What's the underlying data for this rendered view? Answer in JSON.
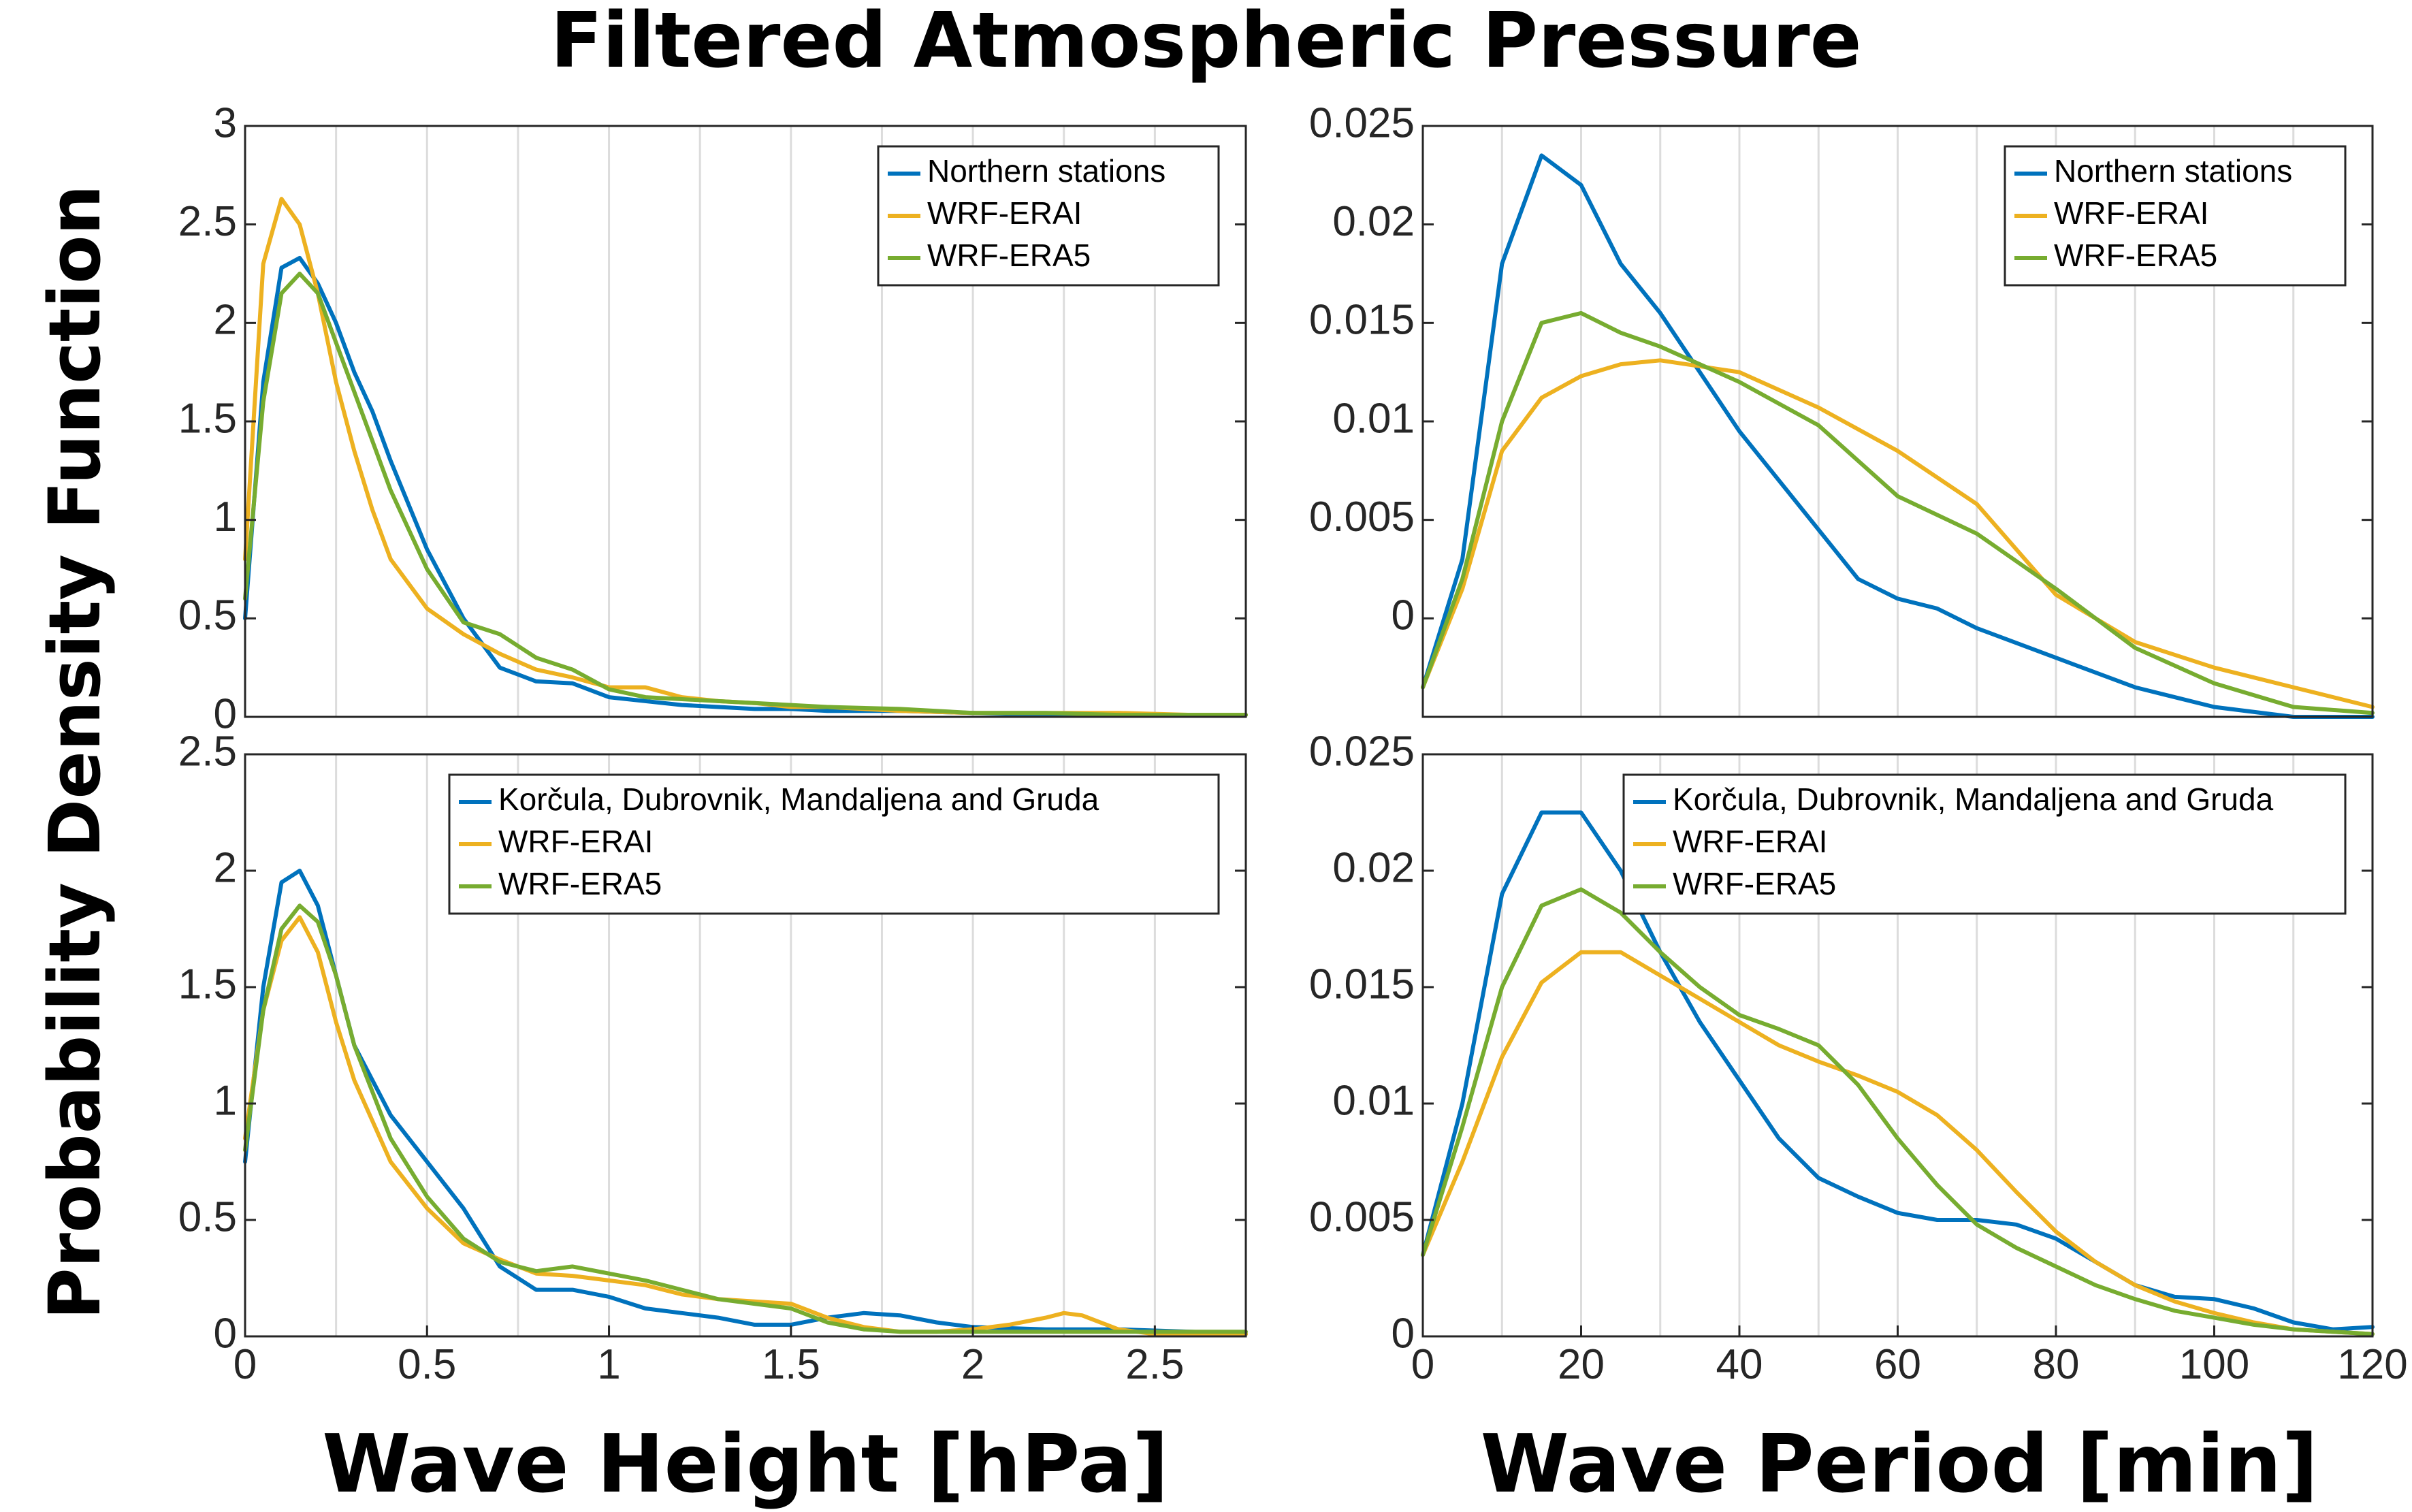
{
  "figure": {
    "title": "Filtered Atmospheric Pressure",
    "ylabel": "Probability Density Function",
    "xlabel_left": "Wave Height [hPa]",
    "xlabel_right": "Wave Period [min]"
  },
  "colors": {
    "blue": "#0072BD",
    "orange": "#EDB120",
    "green": "#77AC30"
  },
  "chart_data": [
    {
      "type": "line",
      "panel": "top-left",
      "xlim": [
        0,
        2.75
      ],
      "ylim": [
        0,
        3
      ],
      "yticks": [
        "0",
        "0.5",
        "1",
        "1.5",
        "2",
        "2.5",
        "3"
      ],
      "xticks": [],
      "grid": "vertical",
      "legend_position": "top-right",
      "series": [
        {
          "name": "Northern stations",
          "color": "#0072BD",
          "x": [
            0,
            0.05,
            0.1,
            0.15,
            0.2,
            0.25,
            0.3,
            0.35,
            0.4,
            0.5,
            0.6,
            0.7,
            0.8,
            0.9,
            1.0,
            1.1,
            1.2,
            1.3,
            1.4,
            1.5,
            1.6,
            1.8,
            2.0,
            2.2,
            2.4,
            2.6,
            2.75
          ],
          "y": [
            0.5,
            1.7,
            2.28,
            2.33,
            2.2,
            2.0,
            1.75,
            1.55,
            1.3,
            0.85,
            0.5,
            0.25,
            0.18,
            0.17,
            0.1,
            0.08,
            0.06,
            0.05,
            0.04,
            0.04,
            0.03,
            0.03,
            0.02,
            0.01,
            0.01,
            0.01,
            0.01
          ]
        },
        {
          "name": "WRF-ERAI",
          "color": "#EDB120",
          "x": [
            0,
            0.05,
            0.1,
            0.15,
            0.2,
            0.25,
            0.3,
            0.35,
            0.4,
            0.5,
            0.6,
            0.7,
            0.8,
            0.9,
            1.0,
            1.1,
            1.2,
            1.3,
            1.4,
            1.5,
            1.6,
            1.8,
            2.0,
            2.2,
            2.4,
            2.6,
            2.75
          ],
          "y": [
            0.8,
            2.3,
            2.63,
            2.5,
            2.15,
            1.7,
            1.35,
            1.05,
            0.8,
            0.55,
            0.42,
            0.32,
            0.24,
            0.2,
            0.15,
            0.15,
            0.1,
            0.08,
            0.07,
            0.05,
            0.05,
            0.03,
            0.02,
            0.02,
            0.02,
            0.01,
            0.01
          ]
        },
        {
          "name": "WRF-ERA5",
          "color": "#77AC30",
          "x": [
            0,
            0.05,
            0.1,
            0.15,
            0.2,
            0.25,
            0.3,
            0.35,
            0.4,
            0.5,
            0.6,
            0.7,
            0.8,
            0.9,
            1.0,
            1.1,
            1.2,
            1.3,
            1.4,
            1.5,
            1.6,
            1.8,
            2.0,
            2.2,
            2.4,
            2.6,
            2.75
          ],
          "y": [
            0.6,
            1.6,
            2.15,
            2.25,
            2.15,
            1.9,
            1.65,
            1.4,
            1.15,
            0.75,
            0.48,
            0.42,
            0.3,
            0.24,
            0.14,
            0.1,
            0.09,
            0.08,
            0.07,
            0.06,
            0.05,
            0.04,
            0.02,
            0.02,
            0.01,
            0.01,
            0.01
          ]
        }
      ]
    },
    {
      "type": "line",
      "panel": "top-right",
      "xlim": [
        0,
        120
      ],
      "ylim": [
        -0.005,
        0.025
      ],
      "yticks": [
        "0",
        "0.005",
        "0.01",
        "0.015",
        "0.02",
        "0.025"
      ],
      "xticks": [],
      "grid": "vertical",
      "legend_position": "top-right",
      "series": [
        {
          "name": "Northern stations",
          "color": "#0072BD",
          "x": [
            0,
            5,
            10,
            15,
            20,
            25,
            30,
            40,
            50,
            55,
            60,
            65,
            70,
            80,
            90,
            100,
            110,
            120
          ],
          "y": [
            -0.0035,
            0.003,
            0.018,
            0.0235,
            0.022,
            0.018,
            0.0155,
            0.0095,
            0.0045,
            0.002,
            0.001,
            0.0005,
            -0.0005,
            -0.002,
            -0.0035,
            -0.0045,
            -0.005,
            -0.005
          ]
        },
        {
          "name": "WRF-ERAI",
          "color": "#EDB120",
          "x": [
            0,
            5,
            10,
            15,
            20,
            25,
            30,
            40,
            50,
            60,
            70,
            80,
            90,
            100,
            110,
            120
          ],
          "y": [
            -0.0035,
            0.0015,
            0.0085,
            0.0112,
            0.0123,
            0.0129,
            0.0131,
            0.0125,
            0.0107,
            0.0085,
            0.0058,
            0.0012,
            -0.0012,
            -0.0025,
            -0.0035,
            -0.0045
          ]
        },
        {
          "name": "WRF-ERA5",
          "color": "#77AC30",
          "x": [
            0,
            5,
            10,
            15,
            20,
            25,
            30,
            40,
            50,
            60,
            70,
            80,
            90,
            100,
            110,
            120
          ],
          "y": [
            -0.0035,
            0.002,
            0.01,
            0.015,
            0.0155,
            0.0145,
            0.0138,
            0.012,
            0.0098,
            0.0062,
            0.0043,
            0.0015,
            -0.0015,
            -0.0033,
            -0.0045,
            -0.0048
          ]
        }
      ]
    },
    {
      "type": "line",
      "panel": "bottom-left",
      "xlim": [
        0,
        2.75
      ],
      "ylim": [
        0,
        2.5
      ],
      "yticks": [
        "0",
        "0.5",
        "1",
        "1.5",
        "2",
        "2.5"
      ],
      "xticks": [
        "0",
        "0.5",
        "1",
        "1.5",
        "2",
        "2.5"
      ],
      "grid": "vertical",
      "legend_position": "top-right",
      "series": [
        {
          "name": "Korčula, Dubrovnik, Mandaljena and Gruda",
          "color": "#0072BD",
          "x": [
            0,
            0.05,
            0.1,
            0.15,
            0.2,
            0.25,
            0.3,
            0.4,
            0.5,
            0.6,
            0.7,
            0.8,
            0.9,
            1.0,
            1.1,
            1.2,
            1.3,
            1.4,
            1.5,
            1.6,
            1.7,
            1.8,
            1.9,
            2.0,
            2.2,
            2.4,
            2.6,
            2.75
          ],
          "y": [
            0.75,
            1.5,
            1.95,
            2.0,
            1.85,
            1.55,
            1.25,
            0.95,
            0.75,
            0.55,
            0.3,
            0.2,
            0.2,
            0.17,
            0.12,
            0.1,
            0.08,
            0.05,
            0.05,
            0.08,
            0.1,
            0.09,
            0.06,
            0.04,
            0.03,
            0.03,
            0.02,
            0.01
          ]
        },
        {
          "name": "WRF-ERAI",
          "color": "#EDB120",
          "x": [
            0,
            0.05,
            0.1,
            0.15,
            0.2,
            0.25,
            0.3,
            0.4,
            0.5,
            0.6,
            0.7,
            0.8,
            0.9,
            1.0,
            1.1,
            1.2,
            1.3,
            1.4,
            1.5,
            1.6,
            1.7,
            1.8,
            1.9,
            2.0,
            2.1,
            2.2,
            2.25,
            2.3,
            2.4,
            2.5,
            2.6,
            2.75
          ],
          "y": [
            0.85,
            1.4,
            1.7,
            1.8,
            1.65,
            1.35,
            1.1,
            0.75,
            0.55,
            0.4,
            0.33,
            0.27,
            0.26,
            0.24,
            0.22,
            0.18,
            0.16,
            0.15,
            0.14,
            0.08,
            0.04,
            0.02,
            0.02,
            0.03,
            0.05,
            0.08,
            0.1,
            0.09,
            0.03,
            0.01,
            0.01,
            0.01
          ]
        },
        {
          "name": "WRF-ERA5",
          "color": "#77AC30",
          "x": [
            0,
            0.05,
            0.1,
            0.15,
            0.2,
            0.25,
            0.3,
            0.4,
            0.5,
            0.6,
            0.7,
            0.8,
            0.9,
            1.0,
            1.1,
            1.2,
            1.3,
            1.4,
            1.5,
            1.6,
            1.7,
            1.8,
            2.0,
            2.2,
            2.4,
            2.6,
            2.75
          ],
          "y": [
            0.8,
            1.4,
            1.75,
            1.85,
            1.78,
            1.55,
            1.25,
            0.85,
            0.6,
            0.42,
            0.32,
            0.28,
            0.3,
            0.27,
            0.24,
            0.2,
            0.16,
            0.14,
            0.12,
            0.06,
            0.03,
            0.02,
            0.02,
            0.02,
            0.02,
            0.02,
            0.02
          ]
        }
      ]
    },
    {
      "type": "line",
      "panel": "bottom-right",
      "xlim": [
        0,
        120
      ],
      "ylim": [
        0,
        0.025
      ],
      "yticks": [
        "0",
        "0.005",
        "0.01",
        "0.015",
        "0.02",
        "0.025"
      ],
      "xticks": [
        "0",
        "20",
        "40",
        "60",
        "80",
        "100",
        "120"
      ],
      "grid": "vertical",
      "legend_position": "top-right",
      "series": [
        {
          "name": "Korčula, Dubrovnik, Mandaljena and Gruda",
          "color": "#0072BD",
          "x": [
            0,
            5,
            10,
            15,
            20,
            25,
            30,
            35,
            40,
            45,
            50,
            55,
            60,
            65,
            70,
            75,
            80,
            85,
            90,
            95,
            100,
            105,
            110,
            115,
            120
          ],
          "y": [
            0.0035,
            0.01,
            0.019,
            0.0225,
            0.0225,
            0.02,
            0.0165,
            0.0135,
            0.011,
            0.0085,
            0.0068,
            0.006,
            0.0053,
            0.005,
            0.005,
            0.0048,
            0.0042,
            0.0032,
            0.0022,
            0.0017,
            0.0016,
            0.0012,
            0.0006,
            0.0003,
            0.0004
          ]
        },
        {
          "name": "WRF-ERAI",
          "color": "#EDB120",
          "x": [
            0,
            5,
            10,
            15,
            20,
            25,
            30,
            35,
            40,
            45,
            50,
            55,
            60,
            65,
            70,
            75,
            80,
            85,
            90,
            95,
            100,
            105,
            110,
            115,
            120
          ],
          "y": [
            0.0035,
            0.0075,
            0.012,
            0.0152,
            0.0165,
            0.0165,
            0.0155,
            0.0145,
            0.0135,
            0.0125,
            0.0118,
            0.0112,
            0.0105,
            0.0095,
            0.008,
            0.0062,
            0.0045,
            0.0032,
            0.0022,
            0.0015,
            0.001,
            0.0006,
            0.0003,
            0.0002,
            0.0001
          ]
        },
        {
          "name": "WRF-ERA5",
          "color": "#77AC30",
          "x": [
            0,
            5,
            10,
            15,
            20,
            25,
            30,
            35,
            40,
            45,
            50,
            55,
            60,
            65,
            70,
            75,
            80,
            85,
            90,
            95,
            100,
            105,
            110,
            115,
            120
          ],
          "y": [
            0.0035,
            0.009,
            0.015,
            0.0185,
            0.0192,
            0.0182,
            0.0165,
            0.015,
            0.0138,
            0.0132,
            0.0125,
            0.0108,
            0.0085,
            0.0065,
            0.0048,
            0.0038,
            0.003,
            0.0022,
            0.0016,
            0.0011,
            0.0008,
            0.0005,
            0.0003,
            0.0002,
            0.0001
          ]
        }
      ]
    }
  ]
}
